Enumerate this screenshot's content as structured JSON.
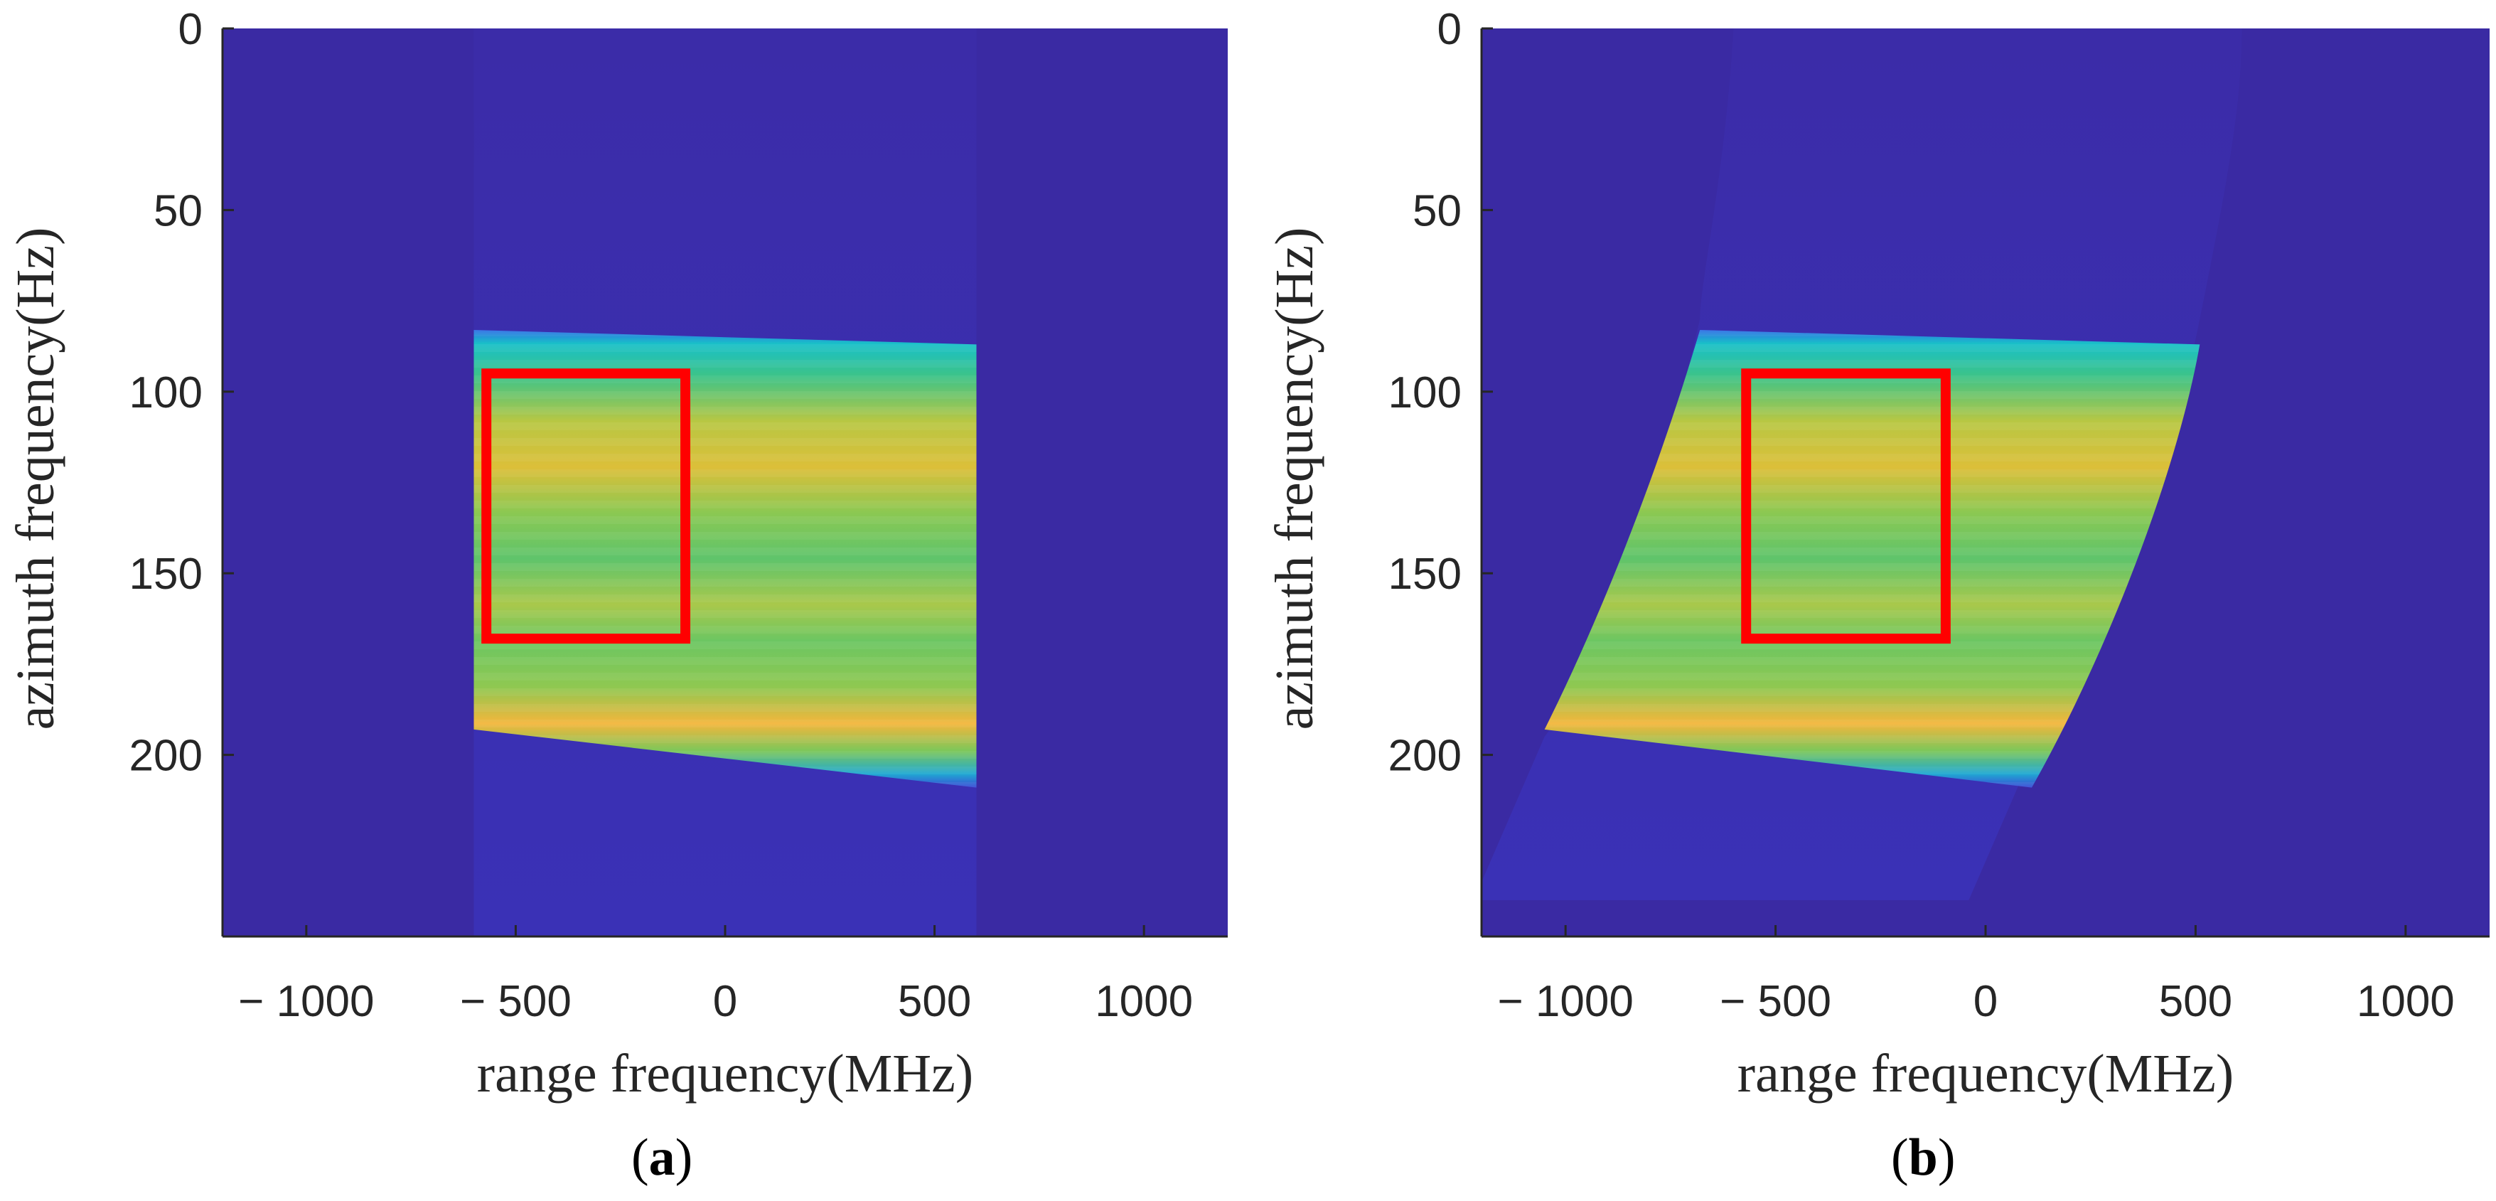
{
  "chart_data": [
    {
      "type": "heatmap",
      "panel": "a",
      "caption_label": "a",
      "xlabel": "range frequency(MHz)",
      "ylabel": "azimuth frequency(Hz)",
      "xlim": [
        -1200,
        1200
      ],
      "ylim": [
        250,
        0
      ],
      "x_ticks": [
        -1000,
        -500,
        0,
        500,
        1000
      ],
      "x_tick_labels": [
        "− 1000",
        "− 500",
        "0",
        "500",
        "1000"
      ],
      "y_ticks": [
        0,
        50,
        100,
        150,
        200
      ],
      "y_tick_labels": [
        "0",
        "50",
        "100",
        "150",
        "200"
      ],
      "background_color": "#3a2aa3",
      "spectrum_support": {
        "shape": "vertical-band",
        "range_freq_min_mhz": -600,
        "range_freq_max_mhz": 600
      },
      "energy_band": {
        "top_edge_hz": {
          "at_-600": 83,
          "at_600": 87
        },
        "bottom_edge_hz": {
          "at_-600": 193,
          "at_600": 209
        }
      },
      "highlight_box": {
        "color": "#ff0000",
        "range_freq_mhz": [
          -570,
          -95
        ],
        "azimuth_freq_hz": [
          95,
          168
        ]
      },
      "colormap": [
        "#3e26a8",
        "#2f7aee",
        "#18b2c8",
        "#3bc38a",
        "#8cc953",
        "#d9bd3a",
        "#f6b43c"
      ]
    },
    {
      "type": "heatmap",
      "panel": "b",
      "caption_label": "b",
      "xlabel": "range frequency(MHz)",
      "ylabel": "azimuth frequency(Hz)",
      "xlim": [
        -1200,
        1200
      ],
      "ylim": [
        250,
        0
      ],
      "x_ticks": [
        -1000,
        -500,
        0,
        500,
        1000
      ],
      "x_tick_labels": [
        "− 1000",
        "− 500",
        "0",
        "500",
        "1000"
      ],
      "y_ticks": [
        0,
        50,
        100,
        150,
        200
      ],
      "y_tick_labels": [
        "0",
        "50",
        "100",
        "150",
        "200"
      ],
      "background_color": "#3a2aa3",
      "spectrum_support": {
        "shape": "curved-band",
        "left_edge_mhz": {
          "at_0hz": -600,
          "at_80hz": -680,
          "at_195hz": -1050,
          "at_235hz": -1200
        },
        "right_edge_mhz": {
          "at_0hz": 610,
          "at_80hz": 510,
          "at_200hz": 110,
          "at_240hz": -40
        }
      },
      "energy_band": {
        "top_edge_hz": {
          "at_-680": 83,
          "at_510": 87
        },
        "bottom_edge_hz": {
          "at_-1050": 193,
          "at_110": 209
        }
      },
      "highlight_box": {
        "color": "#ff0000",
        "range_freq_mhz": [
          -570,
          -95
        ],
        "azimuth_freq_hz": [
          95,
          168
        ]
      },
      "colormap": [
        "#3e26a8",
        "#2f7aee",
        "#18b2c8",
        "#3bc38a",
        "#8cc953",
        "#d9bd3a",
        "#f6b43c"
      ]
    }
  ]
}
